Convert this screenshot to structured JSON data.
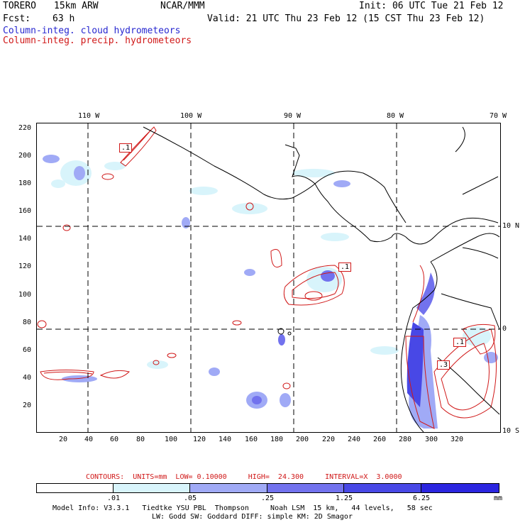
{
  "header": {
    "model": "TORERO",
    "resolution": "15km ARW",
    "center": "NCAR/MMM",
    "init": "Init: 06 UTC Tue 21 Feb 12",
    "fcst_label": "Fcst:",
    "fcst_value": "63 h",
    "valid": "Valid: 21 UTC Thu 23 Feb 12 (15 CST Thu 23 Feb 12)"
  },
  "legend": {
    "cloud": "Column-integ. cloud hydrometeors",
    "precip": "Column-integ. precip. hydrometeors"
  },
  "top_lon_labels": [
    "110 W",
    "100 W",
    "90 W",
    "80 W",
    "70 W"
  ],
  "right_lat_labels": [
    "10 N",
    "0",
    "10 S"
  ],
  "y_ticks": [
    "220",
    "200",
    "180",
    "160",
    "140",
    "120",
    "100",
    "80",
    "60",
    "40",
    "20"
  ],
  "x_ticks": [
    "20",
    "40",
    "60",
    "80",
    "100",
    "120",
    "140",
    "160",
    "180",
    "200",
    "220",
    "240",
    "260",
    "280",
    "300",
    "320"
  ],
  "contour_labels": [
    ".1",
    ".1",
    ".1",
    ".3"
  ],
  "contours_line": "CONTOURS:  UNITS=mm  LOW= 0.10000     HIGH=  24.300     INTERVAL=X  3.0000",
  "colorbar": {
    "labels": [
      ".01",
      ".05",
      ".25",
      "1.25",
      "6.25"
    ],
    "units": "mm",
    "colors": [
      "#ffffff",
      "#d8f4fb",
      "#a0aaf6",
      "#7272ee",
      "#4848e6",
      "#2b25e0"
    ]
  },
  "footer": {
    "line1": "Model Info: V3.3.1   Tiedtke YSU PBL  Thompson     Noah LSM  15 km,   44 levels,   58 sec",
    "line2": "LW: Godd SW: Goddard DIFF: simple KM: 2D Smagor"
  },
  "colors": {
    "cloud_text": "#2828d0",
    "precip_text": "#d01818"
  }
}
